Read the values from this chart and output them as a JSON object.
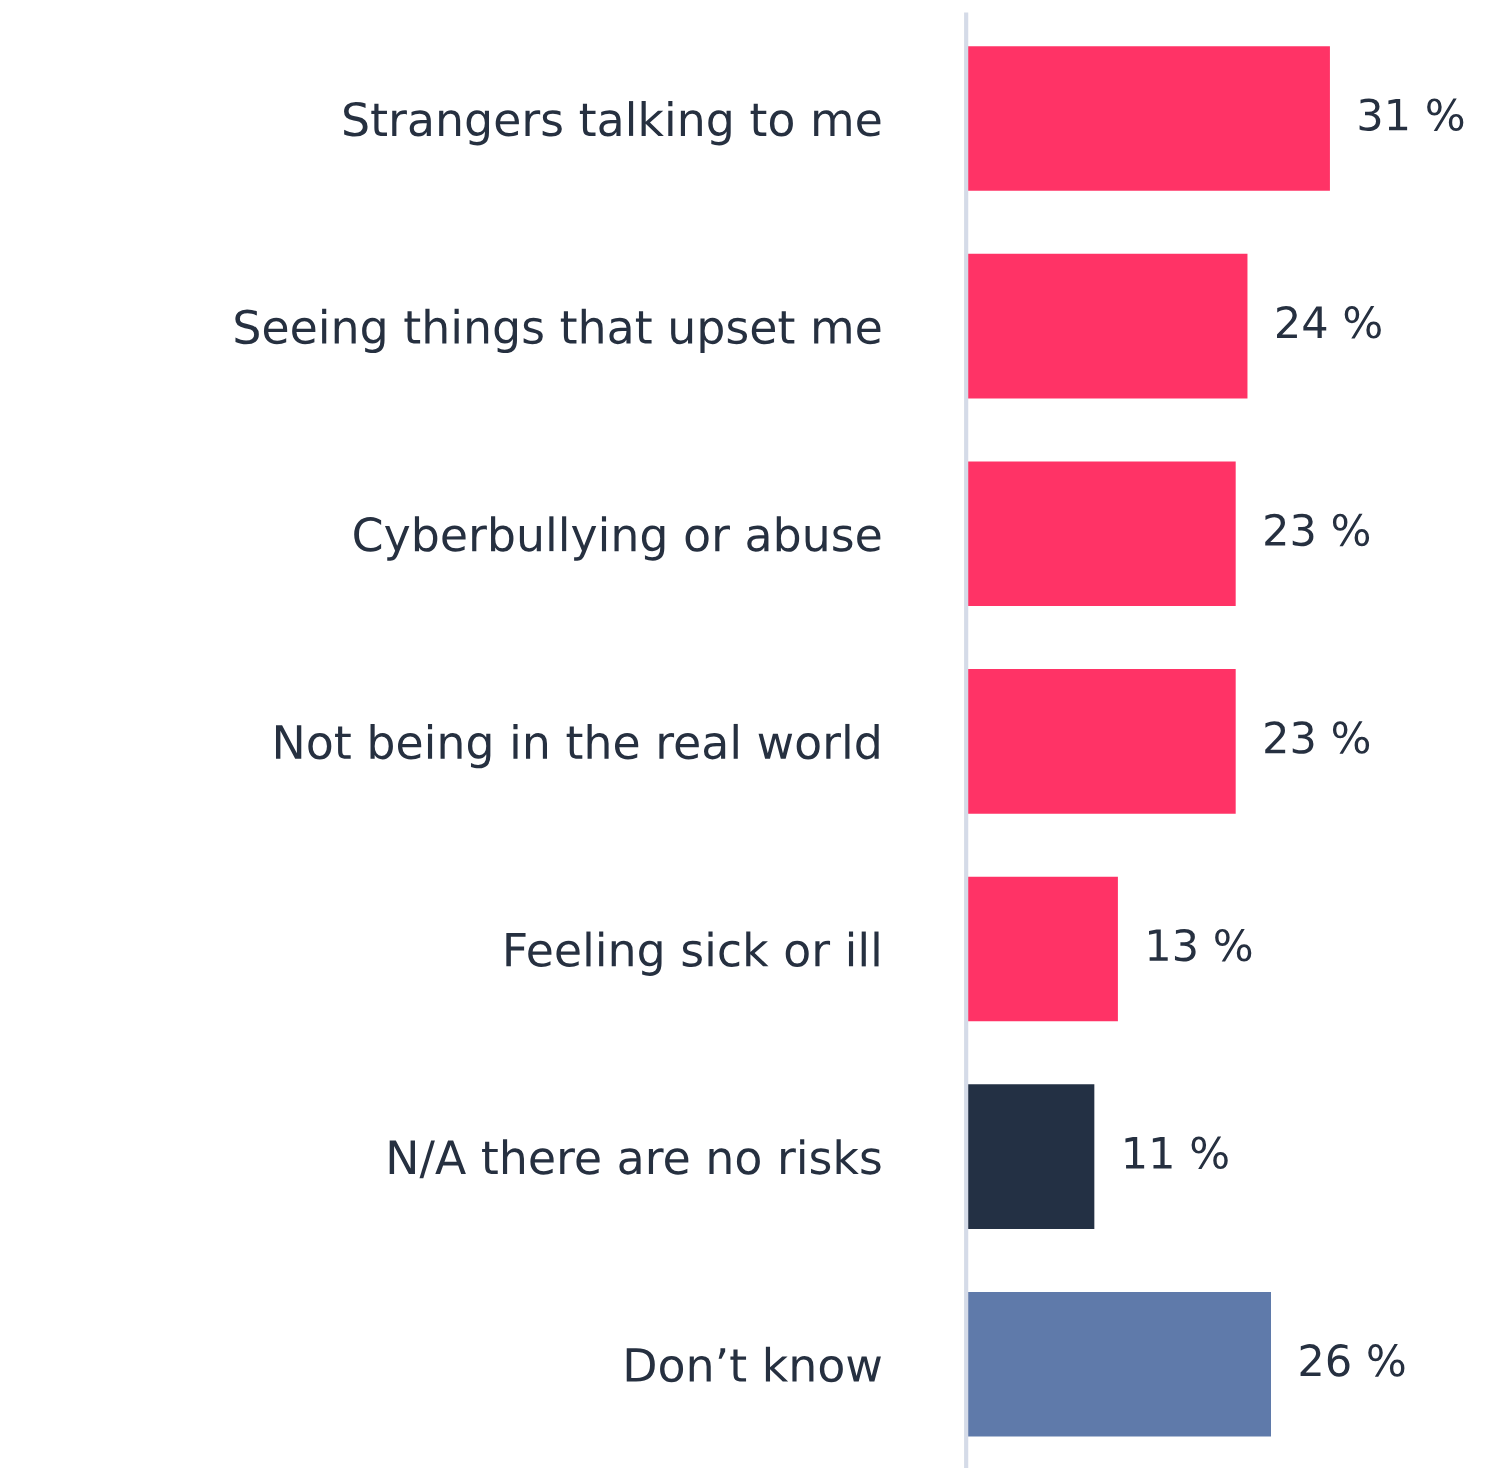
{
  "chart_data": {
    "type": "bar",
    "orientation": "horizontal",
    "categories": [
      "Strangers talking to me",
      "Seeing things that upset me",
      "Cyberbullying or abuse",
      "Not being in the real world",
      "Feeling sick or ill",
      "N/A there are no risks",
      "Don’t know"
    ],
    "values": [
      31,
      24,
      23,
      23,
      13,
      11,
      26
    ],
    "colors": [
      "#ff3366",
      "#ff3366",
      "#ff3366",
      "#ff3366",
      "#ff3366",
      "#233044",
      "#5f7aaa"
    ],
    "value_labels": [
      "31 %",
      "24 %",
      "23 %",
      "23 %",
      "13 %",
      "11 %",
      "26 %"
    ],
    "tick_labels": "y"
  }
}
